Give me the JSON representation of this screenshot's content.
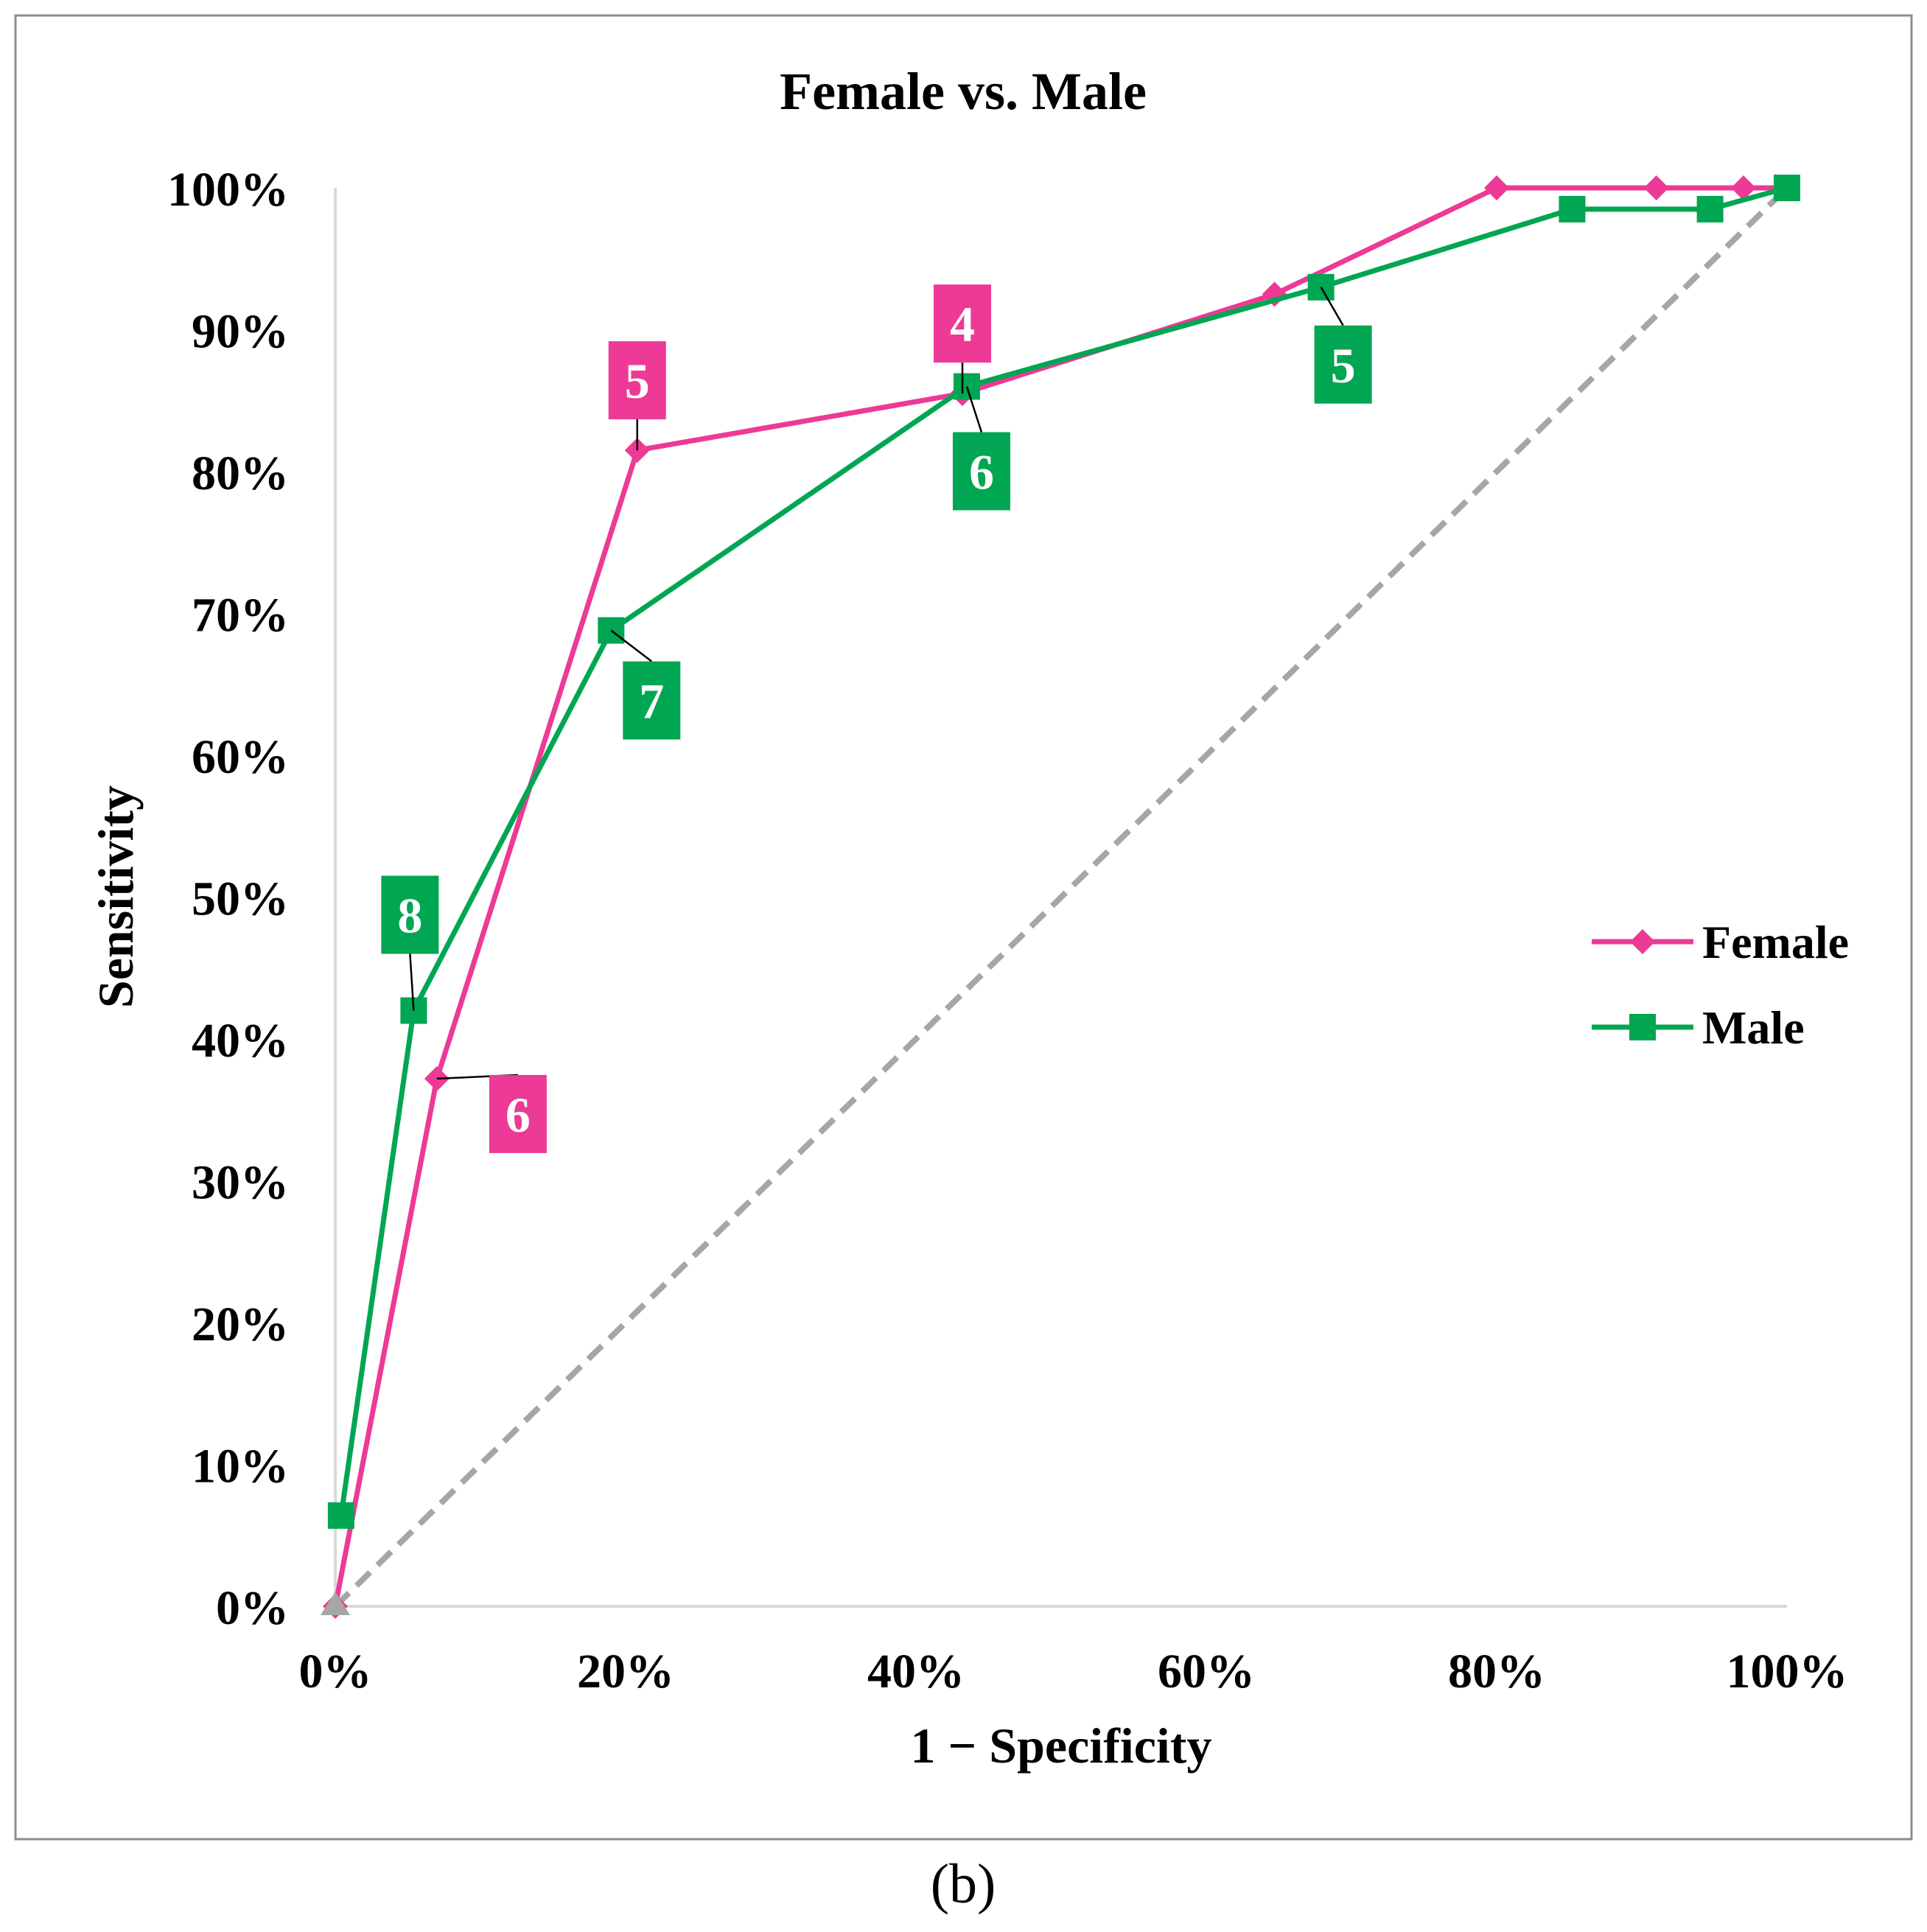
{
  "chart_data": {
    "type": "line",
    "title": "Female vs. Male",
    "xlabel": "1 − Specificity",
    "ylabel": "Sensitivity",
    "xlim": [
      0,
      1
    ],
    "ylim": [
      0,
      1
    ],
    "x_ticks": [
      0,
      0.2,
      0.4,
      0.6,
      0.8,
      1.0
    ],
    "x_tick_labels": [
      "0%",
      "20%",
      "40%",
      "60%",
      "80%",
      "100%"
    ],
    "y_ticks": [
      0,
      0.1,
      0.2,
      0.3,
      0.4,
      0.5,
      0.6,
      0.7,
      0.8,
      0.9,
      1.0
    ],
    "y_tick_labels": [
      "0%",
      "10%",
      "20%",
      "30%",
      "40%",
      "50%",
      "60%",
      "70%",
      "80%",
      "90%",
      "100%"
    ],
    "grid": false,
    "legend_position": "right",
    "series": [
      {
        "name": "Female",
        "color": "#ec3a96",
        "marker": "diamond",
        "points": [
          {
            "x": 0.0,
            "y": 0.0
          },
          {
            "x": 0.07,
            "y": 0.372
          },
          {
            "x": 0.208,
            "y": 0.815
          },
          {
            "x": 0.432,
            "y": 0.855
          },
          {
            "x": 0.647,
            "y": 0.925
          },
          {
            "x": 0.8,
            "y": 1.0
          },
          {
            "x": 0.91,
            "y": 1.0
          },
          {
            "x": 0.97,
            "y": 1.0
          },
          {
            "x": 1.0,
            "y": 1.0
          }
        ]
      },
      {
        "name": "Male",
        "color": "#00a651",
        "marker": "square",
        "points": [
          {
            "x": 0.004,
            "y": 0.064
          },
          {
            "x": 0.054,
            "y": 0.42
          },
          {
            "x": 0.19,
            "y": 0.688
          },
          {
            "x": 0.435,
            "y": 0.86
          },
          {
            "x": 0.679,
            "y": 0.93
          },
          {
            "x": 0.852,
            "y": 0.985
          },
          {
            "x": 0.947,
            "y": 0.985
          },
          {
            "x": 1.0,
            "y": 1.0
          }
        ]
      },
      {
        "name": "",
        "color": "#a6a6a6",
        "marker": "none",
        "style": "dashed",
        "points": [
          {
            "x": 0.0,
            "y": 0.0
          },
          {
            "x": 1.0,
            "y": 1.0
          }
        ]
      }
    ],
    "annotations": [
      {
        "text": "6",
        "series": "Female",
        "x": 0.07,
        "y": 0.372
      },
      {
        "text": "5",
        "series": "Female",
        "x": 0.208,
        "y": 0.815
      },
      {
        "text": "4",
        "series": "Female",
        "x": 0.432,
        "y": 0.855
      },
      {
        "text": "8",
        "series": "Male",
        "x": 0.054,
        "y": 0.42
      },
      {
        "text": "7",
        "series": "Male",
        "x": 0.19,
        "y": 0.688
      },
      {
        "text": "6",
        "series": "Male",
        "x": 0.435,
        "y": 0.86
      },
      {
        "text": "5",
        "series": "Male",
        "x": 0.679,
        "y": 0.93
      }
    ]
  },
  "caption": "(b)"
}
